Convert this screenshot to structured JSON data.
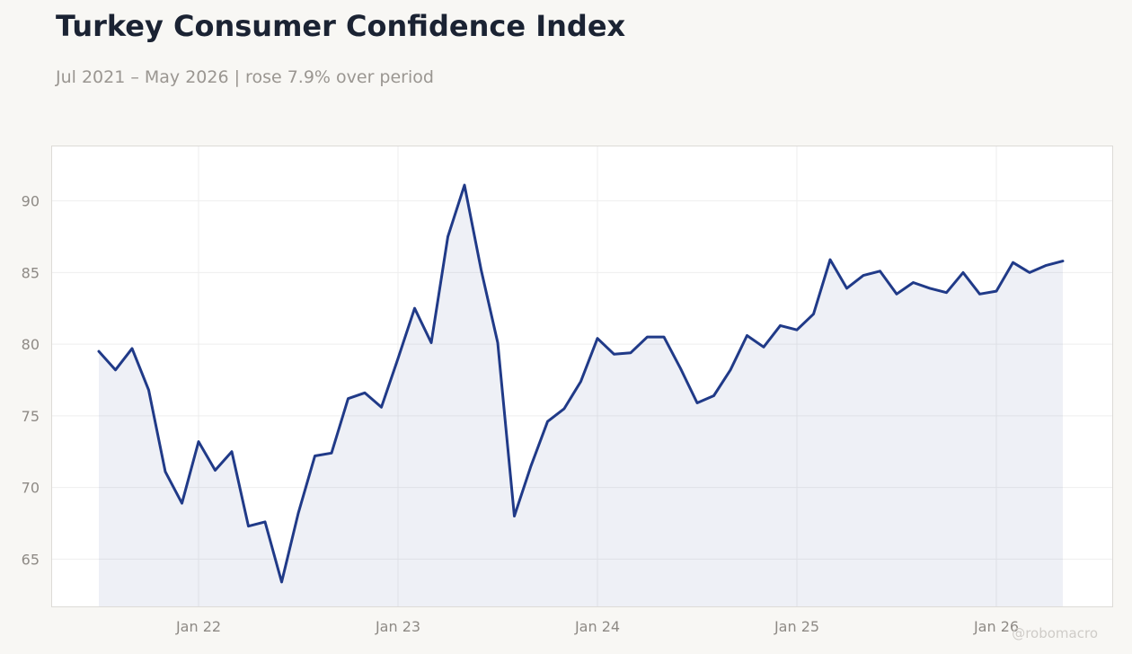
{
  "title": "Turkey Consumer Confidence Index",
  "subtitle": "Jul 2021 – May 2026 | rose 7.9% over period",
  "credit": "@robomacro",
  "colors": {
    "line": "#203a88",
    "fill": "#203a88",
    "background": "#f8f7f4",
    "plot_background": "#ffffff",
    "grid": "#eeeeee",
    "title": "#1b2333",
    "muted": "#9a9691"
  },
  "chart_data": {
    "type": "area",
    "x_start": "2021-07",
    "x_end": "2026-05",
    "frequency": "monthly",
    "xticks": [
      {
        "date": "2022-01",
        "label": "Jan 22"
      },
      {
        "date": "2023-01",
        "label": "Jan 23"
      },
      {
        "date": "2024-01",
        "label": "Jan 24"
      },
      {
        "date": "2025-01",
        "label": "Jan 25"
      },
      {
        "date": "2026-01",
        "label": "Jan 26"
      }
    ],
    "yticks": [
      65,
      70,
      75,
      80,
      85,
      90
    ],
    "ylim": [
      61.7,
      93.8
    ],
    "grid": true,
    "legend": "none",
    "series": [
      {
        "values": [
          79.5,
          78.2,
          79.7,
          76.8,
          71.1,
          68.9,
          73.2,
          71.2,
          72.5,
          67.3,
          67.6,
          63.4,
          68.2,
          72.2,
          72.4,
          76.2,
          76.6,
          75.6,
          79.0,
          82.5,
          80.1,
          87.5,
          91.1,
          85.2,
          80.1,
          68.0,
          71.5,
          74.6,
          75.5,
          77.4,
          80.4,
          79.3,
          79.4,
          80.5,
          80.5,
          78.3,
          75.9,
          76.4,
          78.2,
          80.6,
          79.8,
          81.3,
          81.0,
          82.1,
          85.9,
          83.9,
          84.8,
          85.1,
          83.5,
          84.3,
          83.9,
          83.6,
          85.0,
          83.5,
          83.7,
          85.7,
          85.0,
          85.5,
          85.8
        ]
      }
    ]
  }
}
